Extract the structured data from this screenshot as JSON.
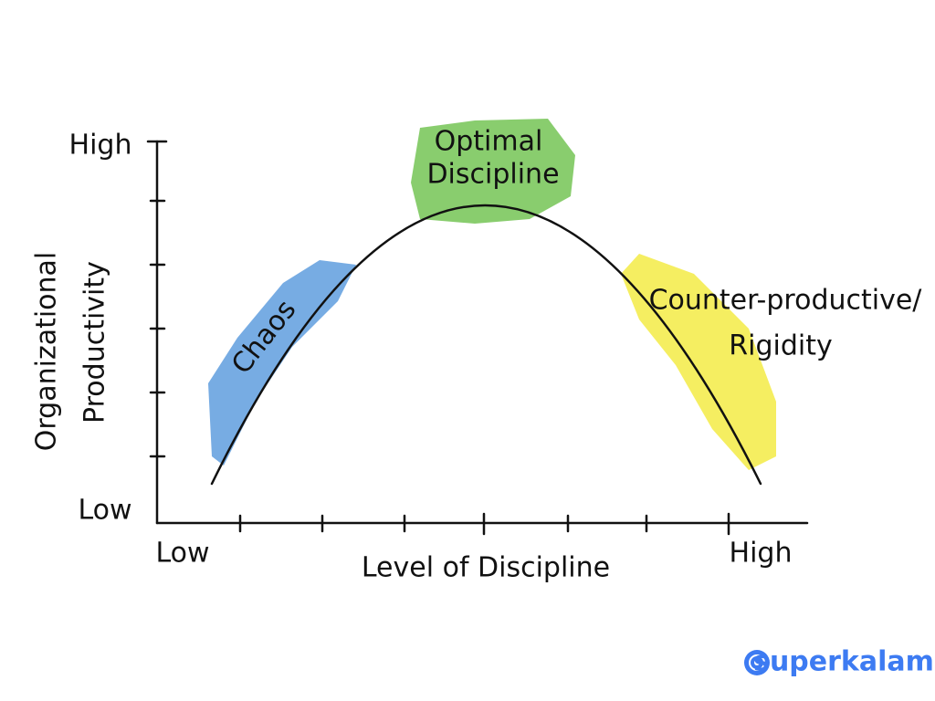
{
  "y_axis": {
    "label": [
      "Organizational",
      "Productivity"
    ],
    "high": "High",
    "low": "Low"
  },
  "x_axis": {
    "label": "Level of Discipline",
    "low": "Low",
    "high": "High"
  },
  "regions": [
    {
      "label": [
        "Chaos"
      ]
    },
    {
      "label": [
        "Optimal",
        "Discipline"
      ]
    },
    {
      "label": [
        "Counter-productive/",
        "Rigidity"
      ]
    }
  ],
  "brand": "superkalam"
}
